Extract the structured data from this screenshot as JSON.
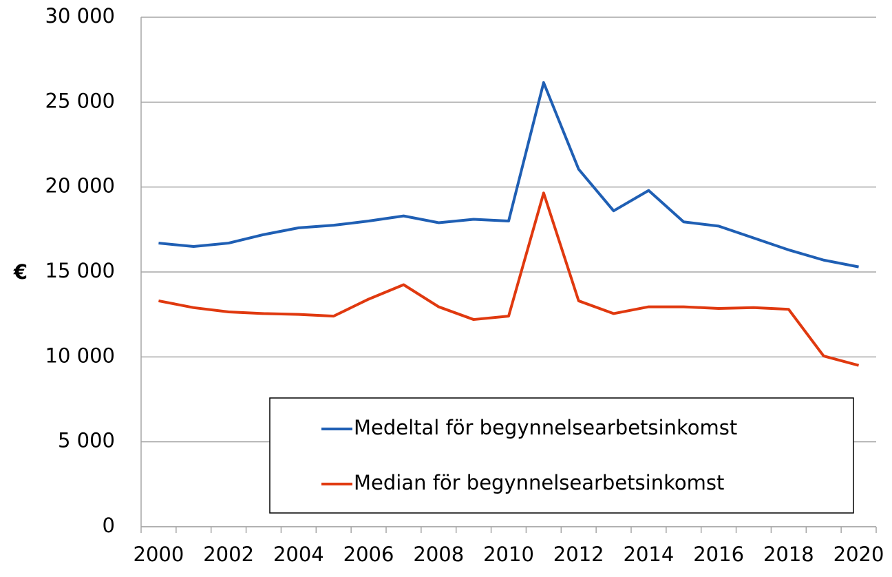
{
  "chart_data": {
    "type": "line",
    "y_label": "€",
    "categories": [
      "2000",
      null,
      "2002",
      null,
      "2004",
      null,
      "2006",
      null,
      "2008",
      null,
      "2010",
      null,
      "2012",
      null,
      "2014",
      null,
      "2016",
      null,
      "2018",
      null,
      "2020"
    ],
    "series": [
      {
        "name": "Medeltal för begynnelsearbetsinkomst",
        "color": "#1f5fb4",
        "values": [
          16700,
          16500,
          16700,
          17200,
          17600,
          17750,
          18000,
          18300,
          17900,
          18100,
          18000,
          26150,
          21050,
          18600,
          19800,
          17950,
          17700,
          17000,
          16300,
          15700,
          15300
        ]
      },
      {
        "name": "Median för begynnelsearbetsinkomst",
        "color": "#e0390f",
        "values": [
          13300,
          12900,
          12650,
          12550,
          12500,
          12400,
          13400,
          14250,
          12950,
          12200,
          12400,
          19650,
          13300,
          12550,
          12950,
          12950,
          12850,
          12900,
          12800,
          10050,
          9500
        ]
      }
    ],
    "ylim": [
      0,
      30000
    ],
    "yticks": [
      0,
      {
        "value": 5000,
        "label": "5 000"
      },
      {
        "value": 10000,
        "label": "10 000"
      },
      {
        "value": 15000,
        "label": "15 000"
      },
      {
        "value": 20000,
        "label": "20 000"
      },
      {
        "value": 25000,
        "label": "25 000"
      },
      {
        "value": 30000,
        "label": "30 000"
      }
    ],
    "grid": true,
    "legend": "lower right"
  }
}
